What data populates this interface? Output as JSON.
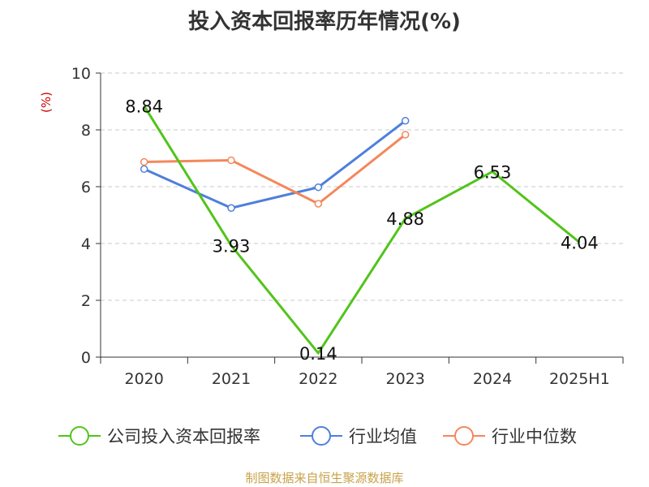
{
  "chart_data": {
    "type": "line",
    "title": "投入资本回报率历年情况(%)",
    "ylabel": "(%)",
    "xlabel": "",
    "categories": [
      "2020",
      "2021",
      "2022",
      "2023",
      "2024",
      "2025H1"
    ],
    "ylim": [
      0,
      10
    ],
    "yticks": [
      "0",
      "2",
      "4",
      "6",
      "8",
      "10"
    ],
    "grid": true,
    "legend_position": "bottom",
    "series": [
      {
        "name": "公司投入资本回报率",
        "color": "#52c41a",
        "values": [
          8.84,
          3.93,
          0.14,
          4.88,
          6.53,
          4.04
        ],
        "labels": [
          "8.84",
          "3.93",
          "0.14",
          "4.88",
          "6.53",
          "4.04"
        ],
        "show_markers": false
      },
      {
        "name": "行业均值",
        "color": "#4e7fdc",
        "values": [
          6.62,
          5.25,
          5.98,
          8.32,
          null,
          null
        ],
        "show_markers": true
      },
      {
        "name": "行业中位数",
        "color": "#f4875a",
        "values": [
          6.87,
          6.93,
          5.4,
          7.83,
          null,
          null
        ],
        "show_markers": true
      }
    ]
  },
  "source": "制图数据来自恒生聚源数据库"
}
